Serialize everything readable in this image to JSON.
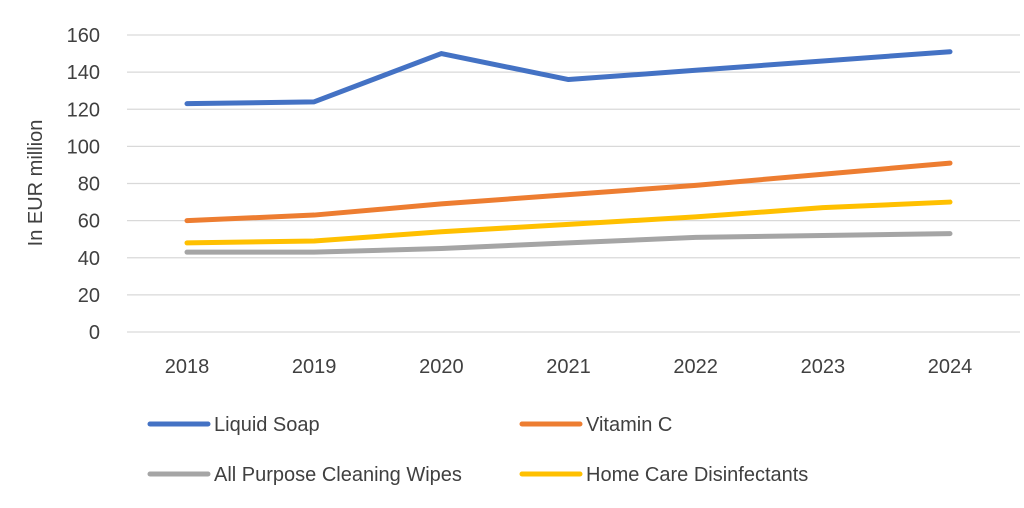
{
  "chart_data": {
    "type": "line",
    "title": "",
    "xlabel": "",
    "ylabel": "In EUR million",
    "ylim": [
      0,
      160
    ],
    "yticks": [
      0,
      20,
      40,
      60,
      80,
      100,
      120,
      140,
      160
    ],
    "grid": true,
    "legend_position": "bottom",
    "categories": [
      "2018",
      "2019",
      "2020",
      "2021",
      "2022",
      "2023",
      "2024"
    ],
    "series": [
      {
        "name": "Liquid Soap",
        "color": "#4472C4",
        "values": [
          123,
          124,
          150,
          136,
          141,
          146,
          151
        ]
      },
      {
        "name": "Vitamin C",
        "color": "#ED7D31",
        "values": [
          60,
          63,
          69,
          74,
          79,
          85,
          91
        ]
      },
      {
        "name": "All Purpose Cleaning Wipes",
        "color": "#A5A5A5",
        "values": [
          43,
          43,
          45,
          48,
          51,
          52,
          53
        ]
      },
      {
        "name": "Home Care Disinfectants",
        "color": "#FFC000",
        "values": [
          48,
          49,
          54,
          58,
          62,
          67,
          70
        ]
      }
    ]
  }
}
